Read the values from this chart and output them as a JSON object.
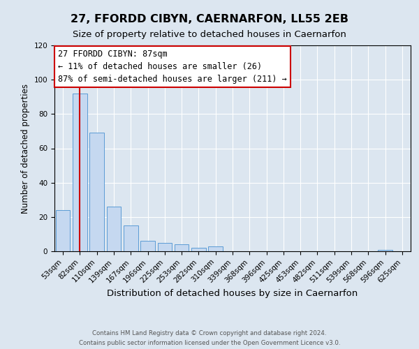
{
  "title": "27, FFORDD CIBYN, CAERNARFON, LL55 2EB",
  "subtitle": "Size of property relative to detached houses in Caernarfon",
  "xlabel": "Distribution of detached houses by size in Caernarfon",
  "ylabel": "Number of detached properties",
  "bar_values": [
    24,
    92,
    69,
    26,
    15,
    6,
    5,
    4,
    2,
    3,
    0,
    0,
    0,
    0,
    0,
    0,
    0,
    0,
    0,
    1,
    0
  ],
  "bin_labels": [
    "53sqm",
    "82sqm",
    "110sqm",
    "139sqm",
    "167sqm",
    "196sqm",
    "225sqm",
    "253sqm",
    "282sqm",
    "310sqm",
    "339sqm",
    "368sqm",
    "396sqm",
    "425sqm",
    "453sqm",
    "482sqm",
    "511sqm",
    "539sqm",
    "568sqm",
    "596sqm",
    "625sqm"
  ],
  "bar_color": "#c5d8f0",
  "bar_edge_color": "#5b9bd5",
  "vline_x": 1.0,
  "vline_color": "#cc0000",
  "annotation_text_line1": "27 FFORDD CIBYN: 87sqm",
  "annotation_text_line2": "← 11% of detached houses are smaller (26)",
  "annotation_text_line3": "87% of semi-detached houses are larger (211) →",
  "annotation_box_edge_color": "#cc0000",
  "annotation_box_face_color": "#ffffff",
  "ylim": [
    0,
    120
  ],
  "yticks": [
    0,
    20,
    40,
    60,
    80,
    100,
    120
  ],
  "background_color": "#dce6f0",
  "plot_background_color": "#dce6f0",
  "footer_line1": "Contains HM Land Registry data © Crown copyright and database right 2024.",
  "footer_line2": "Contains public sector information licensed under the Open Government Licence v3.0.",
  "title_fontsize": 11.5,
  "subtitle_fontsize": 9.5,
  "xlabel_fontsize": 9.5,
  "ylabel_fontsize": 8.5,
  "tick_fontsize": 7.5,
  "annotation_fontsize": 8.5,
  "footer_fontsize": 6.2
}
